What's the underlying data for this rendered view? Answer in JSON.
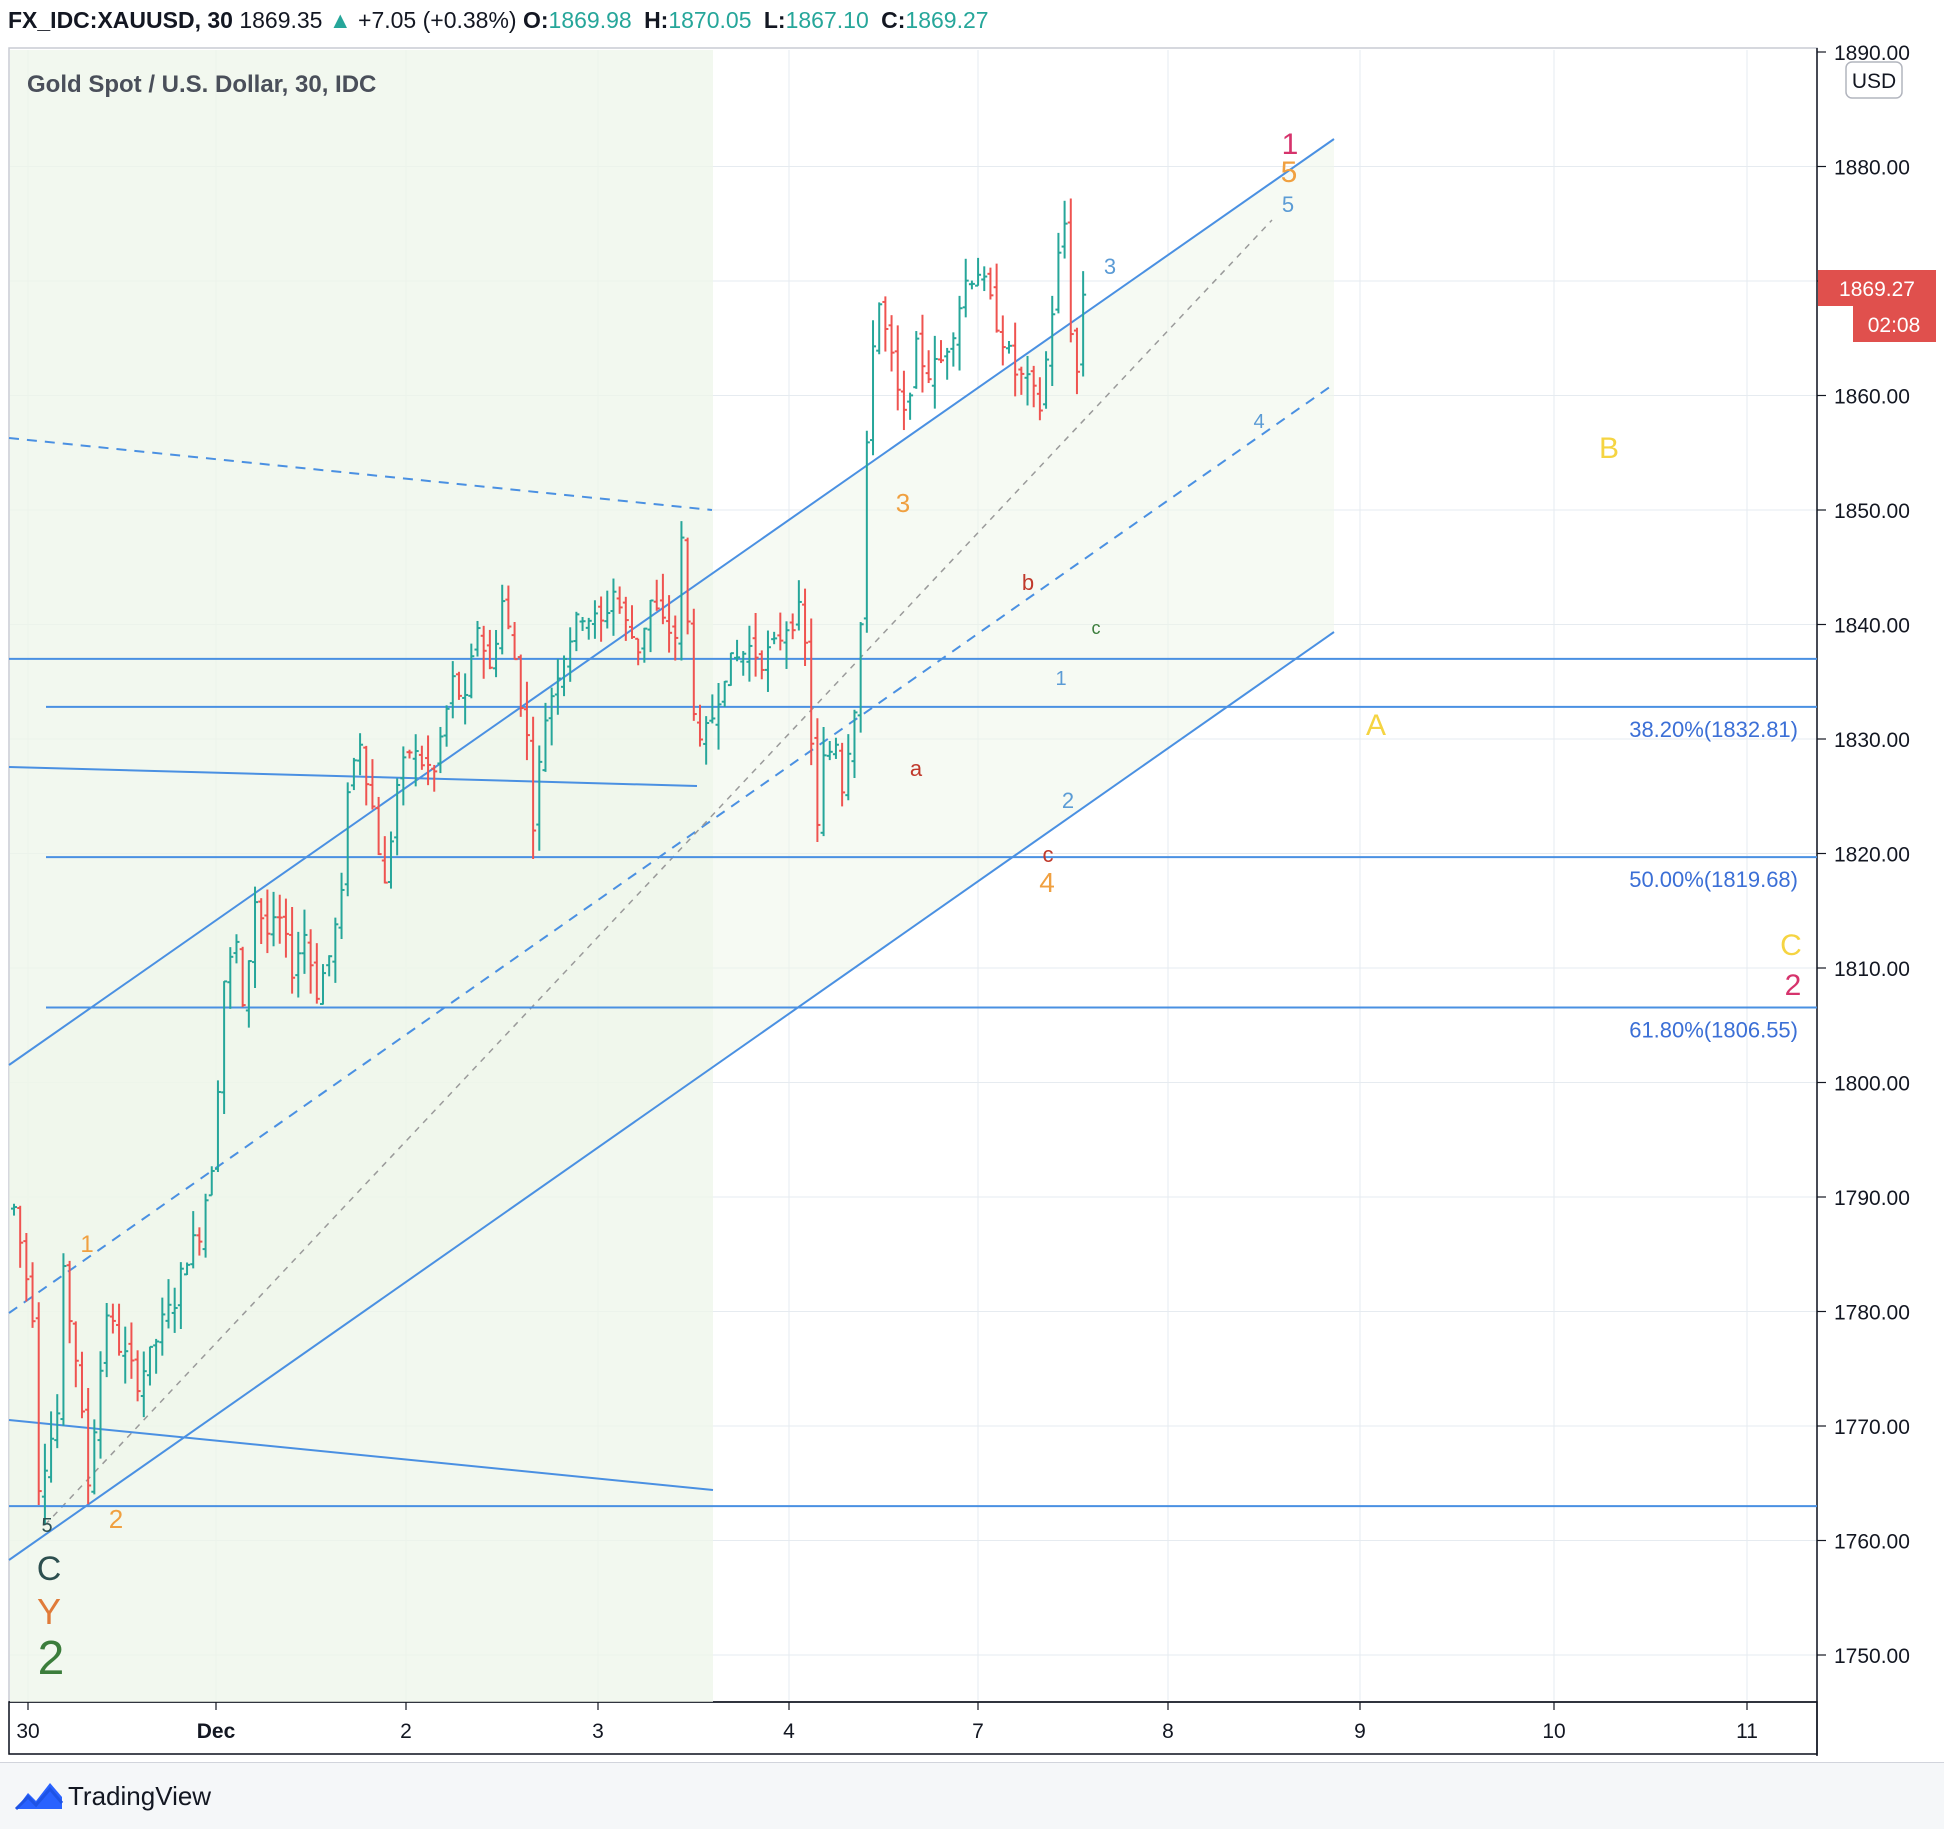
{
  "header": {
    "symbol": "FX_IDC:XAUUSD, 30",
    "last": "1869.35",
    "change": "+7.05 (+0.38%)",
    "o_label": "O:",
    "o": "1869.98",
    "h_label": "H:",
    "h": "1870.05",
    "l_label": "L:",
    "l": "1867.10",
    "c_label": "C:",
    "c": "1869.27"
  },
  "legend_title": "Gold Spot / U.S. Dollar, 30, IDC",
  "currency": "USD",
  "price_badge": "1869.27",
  "countdown": "02:08",
  "footer": {
    "brand": "TradingView"
  },
  "colors": {
    "up": "#26a69a",
    "down": "#ef5350",
    "channel": "#4a90e2",
    "orange": "#f0a040",
    "red": "#c0392b",
    "pink": "#d6336c",
    "yellow": "#f5d442",
    "green": "#3b7d3b",
    "teal": "#2d4f4f",
    "blue_label": "#5b9bd5"
  },
  "chart_data": {
    "type": "ohlc",
    "instrument": "Gold Spot / U.S. Dollar",
    "timeframe": "30",
    "y_ticks": [
      1750,
      1760,
      1770,
      1780,
      1790,
      1800,
      1810,
      1820,
      1830,
      1840,
      1850,
      1860,
      1870,
      1880,
      1890
    ],
    "y_tick_labels": [
      "1750.00",
      "1760.00",
      "1770.00",
      "1780.00",
      "1790.00",
      "1800.00",
      "1810.00",
      "1820.00",
      "1830.00",
      "1840.00",
      "1850.00",
      "1860.00",
      "1870.00",
      "1880.00",
      "1890.00"
    ],
    "x_labels": [
      "30",
      "Dec",
      "2",
      "3",
      "4",
      "7",
      "8",
      "9",
      "10",
      "11"
    ],
    "price_path": [
      [
        0,
        1789
      ],
      [
        3,
        1780
      ],
      [
        4,
        1765
      ],
      [
        7,
        1771
      ],
      [
        8,
        1783
      ],
      [
        10,
        1776
      ],
      [
        12,
        1765
      ],
      [
        15,
        1780
      ],
      [
        17,
        1777
      ],
      [
        20,
        1774
      ],
      [
        22,
        1776
      ],
      [
        24,
        1779
      ],
      [
        26,
        1781
      ],
      [
        28,
        1785
      ],
      [
        30,
        1787
      ],
      [
        32,
        1793
      ],
      [
        33,
        1800
      ],
      [
        34,
        1809
      ],
      [
        36,
        1812
      ],
      [
        37,
        1806
      ],
      [
        39,
        1816
      ],
      [
        41,
        1813
      ],
      [
        43,
        1814
      ],
      [
        45,
        1810
      ],
      [
        47,
        1813
      ],
      [
        49,
        1808
      ],
      [
        51,
        1811
      ],
      [
        53,
        1816
      ],
      [
        54,
        1826
      ],
      [
        56,
        1830
      ],
      [
        58,
        1824
      ],
      [
        60,
        1817
      ],
      [
        62,
        1826
      ],
      [
        64,
        1829
      ],
      [
        66,
        1828
      ],
      [
        68,
        1827
      ],
      [
        69,
        1830
      ],
      [
        71,
        1835
      ],
      [
        73,
        1833
      ],
      [
        75,
        1840
      ],
      [
        77,
        1836
      ],
      [
        79,
        1842
      ],
      [
        81,
        1837
      ],
      [
        83,
        1830
      ],
      [
        84,
        1823
      ],
      [
        86,
        1832
      ],
      [
        88,
        1836
      ],
      [
        90,
        1839
      ],
      [
        92,
        1841
      ],
      [
        95,
        1840
      ],
      [
        97,
        1843
      ],
      [
        99,
        1840
      ],
      [
        101,
        1838
      ],
      [
        103,
        1842
      ],
      [
        105,
        1840
      ],
      [
        107,
        1839
      ],
      [
        108,
        1847
      ],
      [
        110,
        1833
      ],
      [
        111,
        1829
      ],
      [
        113,
        1832
      ],
      [
        115,
        1836
      ],
      [
        117,
        1837
      ],
      [
        119,
        1838
      ],
      [
        121,
        1837
      ],
      [
        123,
        1838
      ],
      [
        125,
        1840
      ],
      [
        127,
        1841
      ],
      [
        128,
        1838
      ],
      [
        129,
        1830
      ],
      [
        130,
        1822
      ],
      [
        131,
        1828
      ],
      [
        133,
        1830
      ],
      [
        134,
        1826
      ],
      [
        136,
        1833
      ],
      [
        137,
        1840
      ],
      [
        138,
        1855
      ],
      [
        139,
        1865
      ],
      [
        140,
        1868
      ],
      [
        142,
        1863
      ],
      [
        143,
        1860
      ],
      [
        144,
        1858
      ],
      [
        146,
        1864
      ],
      [
        148,
        1862
      ],
      [
        150,
        1863
      ],
      [
        152,
        1866
      ],
      [
        154,
        1870
      ],
      [
        156,
        1871
      ],
      [
        158,
        1868
      ],
      [
        160,
        1865
      ],
      [
        162,
        1862
      ],
      [
        164,
        1861
      ],
      [
        166,
        1859
      ],
      [
        167,
        1863
      ],
      [
        169,
        1872
      ],
      [
        170,
        1875
      ],
      [
        171,
        1866
      ],
      [
        172,
        1862
      ],
      [
        173,
        1869
      ]
    ],
    "horizontal_levels": [
      1837,
      1833,
      1819.68,
      1806.55,
      1763
    ],
    "fib_levels": [
      {
        "label": "38.20%(1832.81)",
        "value": 1832.81
      },
      {
        "label": "50.00%(1819.68)",
        "value": 1819.68
      },
      {
        "label": "61.80%(1806.55)",
        "value": 1806.55
      }
    ],
    "wave_labels": {
      "w1": "1",
      "w2": "2",
      "w3": "3",
      "w4": "4",
      "w5": "5",
      "wa": "a",
      "wb": "b",
      "wc": "c",
      "cA": "A",
      "cB": "B",
      "cC": "C",
      "cY": "Y",
      "c2": "2"
    }
  }
}
